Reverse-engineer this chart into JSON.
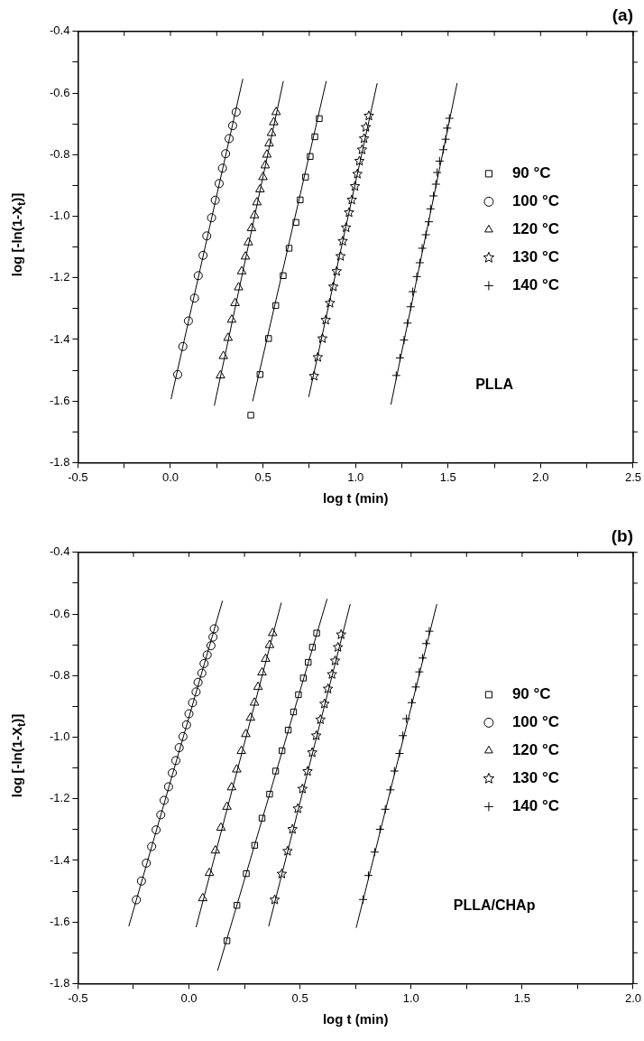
{
  "chart_data": [
    {
      "type": "scatter",
      "title": "(a)",
      "xlabel": "log t (min)",
      "ylabel": "log [-ln(1-X$_{t}$)]",
      "annotations": [
        "PLLA"
      ],
      "legend": "right",
      "xlim": [
        -0.5,
        2.5
      ],
      "ylim": [
        -1.8,
        -0.4
      ],
      "xticks": [
        -0.5,
        {
          "value": -0.25,
          "label": null
        },
        {
          "value": 0,
          "label": "0.0"
        },
        {
          "value": 0.25,
          "label": null
        },
        0.5,
        {
          "value": 0.75,
          "label": null
        },
        {
          "value": 1,
          "label": "1.0"
        },
        {
          "value": 1.25,
          "label": null
        },
        1.5,
        {
          "value": 1.75,
          "label": null
        },
        {
          "value": 2,
          "label": "2.0"
        },
        {
          "value": 2.25,
          "label": null
        },
        2.5
      ],
      "yticks": [
        -1.8,
        {
          "value": -1.7,
          "label": null
        },
        -1.6,
        {
          "value": -1.5,
          "label": null
        },
        -1.4,
        {
          "value": -1.3,
          "label": null
        },
        -1.2,
        {
          "value": -1.1,
          "label": null
        },
        {
          "value": -1,
          "label": "-1.0"
        },
        {
          "value": -0.9,
          "label": null
        },
        -0.8,
        {
          "value": -0.7,
          "label": null
        },
        -0.6,
        {
          "value": -0.5,
          "label": null
        },
        -0.4
      ],
      "series": [
        {
          "name": "90 °C",
          "marker": "square",
          "color": "#000000",
          "x": [
            0.434,
            0.484,
            0.53,
            0.569,
            0.609,
            0.641,
            0.678,
            0.701,
            0.73,
            0.755,
            0.78,
            0.804
          ],
          "values": [
            -1.646,
            -1.514,
            -1.397,
            -1.29,
            -1.193,
            -1.104,
            -1.02,
            -0.947,
            -0.873,
            -0.806,
            -0.742,
            -0.683
          ]
        },
        {
          "name": "100 °C",
          "marker": "circle",
          "color": "#000000",
          "x": [
            0.039,
            0.067,
            0.097,
            0.13,
            0.15,
            0.176,
            0.196,
            0.222,
            0.242,
            0.263,
            0.281,
            0.298,
            0.317,
            0.336,
            0.355
          ],
          "values": [
            -1.514,
            -1.423,
            -1.34,
            -1.266,
            -1.193,
            -1.127,
            -1.064,
            -1.005,
            -0.948,
            -0.894,
            -0.844,
            -0.797,
            -0.748,
            -0.706,
            -0.662
          ]
        },
        {
          "name": "120 °C",
          "marker": "triangle",
          "color": "#000000",
          "x": [
            0.27,
            0.286,
            0.311,
            0.331,
            0.349,
            0.368,
            0.385,
            0.405,
            0.421,
            0.438,
            0.454,
            0.467,
            0.484,
            0.5,
            0.512,
            0.521,
            0.533,
            0.546,
            0.558,
            0.571
          ],
          "values": [
            -1.517,
            -1.454,
            -1.395,
            -1.336,
            -1.282,
            -1.231,
            -1.179,
            -1.131,
            -1.085,
            -1.039,
            -0.997,
            -0.955,
            -0.913,
            -0.873,
            -0.835,
            -0.8,
            -0.764,
            -0.73,
            -0.695,
            -0.662
          ]
        },
        {
          "name": "130 °C",
          "marker": "star",
          "color": "#000000",
          "x": [
            0.776,
            0.796,
            0.821,
            0.839,
            0.862,
            0.88,
            0.898,
            0.919,
            0.931,
            0.949,
            0.965,
            0.98,
            0.997,
            1.01,
            1.021,
            1.035,
            1.046,
            1.056,
            1.072
          ],
          "values": [
            -1.519,
            -1.458,
            -1.397,
            -1.337,
            -1.282,
            -1.229,
            -1.179,
            -1.13,
            -1.081,
            -1.037,
            -0.988,
            -0.947,
            -0.903,
            -0.863,
            -0.821,
            -0.784,
            -0.748,
            -0.711,
            -0.674
          ]
        },
        {
          "name": "140 °C",
          "marker": "cross",
          "color": "#000000",
          "x": [
            1.22,
            1.24,
            1.262,
            1.281,
            1.298,
            1.309,
            1.331,
            1.347,
            1.36,
            1.38,
            1.396,
            1.405,
            1.421,
            1.434,
            1.441,
            1.454,
            1.474,
            1.487,
            1.495,
            1.507
          ],
          "values": [
            -1.517,
            -1.46,
            -1.402,
            -1.347,
            -1.294,
            -1.245,
            -1.196,
            -1.151,
            -1.104,
            -1.06,
            -1.018,
            -0.976,
            -0.934,
            -0.896,
            -0.858,
            -0.821,
            -0.784,
            -0.75,
            -0.714,
            -0.682
          ]
        },
        {
          "type": "line",
          "marker": "none",
          "color": "#000000",
          "x": [
            0.444,
            0.842
          ],
          "values": [
            -1.601,
            -0.561
          ]
        },
        {
          "type": "line",
          "marker": "none",
          "color": "#000000",
          "x": [
            0.003,
            0.391
          ],
          "values": [
            -1.594,
            -0.554
          ]
        },
        {
          "type": "line",
          "marker": "none",
          "color": "#000000",
          "x": [
            0.237,
            0.61
          ],
          "values": [
            -1.615,
            -0.561
          ]
        },
        {
          "type": "line",
          "marker": "none",
          "color": "#000000",
          "x": [
            0.747,
            1.117
          ],
          "values": [
            -1.587,
            -0.568
          ]
        },
        {
          "type": "line",
          "marker": "none",
          "color": "#000000",
          "x": [
            1.191,
            1.549
          ],
          "values": [
            -1.612,
            -0.568
          ]
        }
      ]
    },
    {
      "type": "scatter",
      "title": "(b)",
      "xlabel": "log t (min)",
      "ylabel": "log [-ln(1-X$_{t}$)]",
      "annotations": [
        "PLLA/CHAp"
      ],
      "legend": "right",
      "xlim": [
        -0.5,
        2.0
      ],
      "ylim": [
        -1.8,
        -0.4
      ],
      "xticks": [
        -0.5,
        {
          "value": -0.25,
          "label": null
        },
        {
          "value": 0,
          "label": "0.0"
        },
        {
          "value": 0.25,
          "label": null
        },
        0.5,
        {
          "value": 0.75,
          "label": null
        },
        {
          "value": 1,
          "label": "1.0"
        },
        {
          "value": 1.25,
          "label": null
        },
        1.5,
        {
          "value": 1.75,
          "label": null
        },
        {
          "value": 2,
          "label": "2.0"
        }
      ],
      "yticks": [
        -1.8,
        {
          "value": -1.7,
          "label": null
        },
        -1.6,
        {
          "value": -1.5,
          "label": null
        },
        -1.4,
        {
          "value": -1.3,
          "label": null
        },
        -1.2,
        {
          "value": -1.1,
          "label": null
        },
        {
          "value": -1,
          "label": "-1.0"
        },
        {
          "value": -0.9,
          "label": null
        },
        -0.8,
        {
          "value": -0.7,
          "label": null
        },
        -0.6,
        {
          "value": -0.5,
          "label": null
        },
        -0.4
      ],
      "series": [
        {
          "name": "90 °C",
          "marker": "square",
          "color": "#000000",
          "x": [
            0.171,
            0.216,
            0.258,
            0.296,
            0.329,
            0.363,
            0.39,
            0.419,
            0.447,
            0.471,
            0.493,
            0.515,
            0.537,
            0.556,
            0.575
          ],
          "values": [
            -1.661,
            -1.546,
            -1.443,
            -1.351,
            -1.263,
            -1.185,
            -1.11,
            -1.044,
            -0.977,
            -0.918,
            -0.862,
            -0.808,
            -0.757,
            -0.708,
            -0.662
          ]
        },
        {
          "name": "100 °C",
          "marker": "circle",
          "color": "#000000",
          "x": [
            -0.237,
            -0.214,
            -0.192,
            -0.168,
            -0.148,
            -0.127,
            -0.112,
            -0.092,
            -0.075,
            -0.059,
            -0.044,
            -0.027,
            -0.011,
            0.0,
            0.016,
            0.032,
            0.041,
            0.058,
            0.068,
            0.082,
            0.099,
            0.108,
            0.114
          ],
          "values": [
            -1.528,
            -1.467,
            -1.409,
            -1.355,
            -1.301,
            -1.252,
            -1.205,
            -1.161,
            -1.116,
            -1.076,
            -1.034,
            -0.998,
            -0.96,
            -0.924,
            -0.888,
            -0.853,
            -0.822,
            -0.792,
            -0.761,
            -0.733,
            -0.703,
            -0.675,
            -0.648
          ]
        },
        {
          "name": "120 °C",
          "marker": "triangle",
          "color": "#000000",
          "x": [
            0.062,
            0.092,
            0.119,
            0.144,
            0.171,
            0.192,
            0.215,
            0.236,
            0.256,
            0.277,
            0.295,
            0.311,
            0.329,
            0.345,
            0.363,
            0.377
          ],
          "values": [
            -1.523,
            -1.441,
            -1.368,
            -1.294,
            -1.226,
            -1.163,
            -1.105,
            -1.045,
            -0.99,
            -0.937,
            -0.888,
            -0.837,
            -0.79,
            -0.746,
            -0.701,
            -0.662
          ]
        },
        {
          "name": "130 °C",
          "marker": "star",
          "color": "#000000",
          "x": [
            0.386,
            0.418,
            0.444,
            0.466,
            0.49,
            0.511,
            0.534,
            0.555,
            0.573,
            0.592,
            0.61,
            0.626,
            0.644,
            0.658,
            0.671,
            0.685
          ],
          "values": [
            -1.528,
            -1.444,
            -1.37,
            -1.299,
            -1.232,
            -1.168,
            -1.111,
            -1.05,
            -0.995,
            -0.943,
            -0.892,
            -0.843,
            -0.796,
            -0.752,
            -0.708,
            -0.667
          ]
        },
        {
          "name": "140 °C",
          "marker": "cross",
          "color": "#000000",
          "x": [
            0.784,
            0.808,
            0.836,
            0.86,
            0.884,
            0.907,
            0.925,
            0.948,
            0.963,
            0.979,
            1.003,
            1.021,
            1.037,
            1.052,
            1.068,
            1.082
          ],
          "values": [
            -1.527,
            -1.449,
            -1.373,
            -1.299,
            -1.234,
            -1.171,
            -1.11,
            -1.053,
            -0.995,
            -0.94,
            -0.888,
            -0.837,
            -0.788,
            -0.743,
            -0.696,
            -0.656
          ]
        },
        {
          "type": "line",
          "marker": "none",
          "color": "#000000",
          "x": [
            0.129,
            0.622
          ],
          "values": [
            -1.758,
            -0.551
          ]
        },
        {
          "type": "line",
          "marker": "none",
          "color": "#000000",
          "x": [
            -0.271,
            0.151
          ],
          "values": [
            -1.614,
            -0.557
          ]
        },
        {
          "type": "line",
          "marker": "none",
          "color": "#000000",
          "x": [
            0.032,
            0.416
          ],
          "values": [
            -1.617,
            -0.563
          ]
        },
        {
          "type": "line",
          "marker": "none",
          "color": "#000000",
          "x": [
            0.359,
            0.726
          ],
          "values": [
            -1.614,
            -0.568
          ]
        },
        {
          "type": "line",
          "marker": "none",
          "color": "#000000",
          "x": [
            0.753,
            1.116
          ],
          "values": [
            -1.619,
            -0.568
          ]
        }
      ]
    }
  ]
}
